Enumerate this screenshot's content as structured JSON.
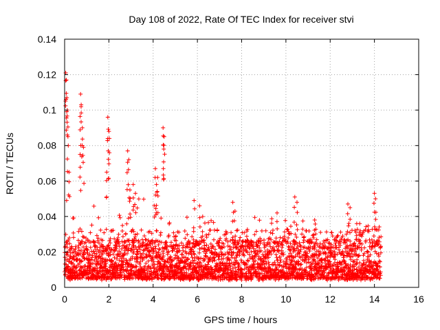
{
  "chart_data": {
    "type": "scatter",
    "title": "Day 108 of 2022, Rate Of TEC Index for receiver stvi",
    "xlabel": "GPS time / hours",
    "ylabel": "ROTI / TECUs",
    "xlim": [
      0,
      16
    ],
    "ylim": [
      0,
      0.14
    ],
    "xticks": [
      0,
      2,
      4,
      6,
      8,
      10,
      12,
      14,
      16
    ],
    "xtick_labels": [
      "0",
      "2",
      "4",
      "6",
      "8",
      "10",
      "12",
      "14",
      "16"
    ],
    "yticks": [
      0,
      0.02,
      0.04,
      0.06,
      0.08,
      0.1,
      0.12,
      0.14
    ],
    "ytick_labels": [
      "0",
      "0.02",
      "0.04",
      "0.06",
      "0.08",
      "0.1",
      "0.12",
      "0.14"
    ],
    "grid": true,
    "marker": "+",
    "color": "#ff0000",
    "data_x_range": [
      0,
      14.3
    ],
    "series": [
      {
        "name": "ROTI",
        "note": "dense cloud of points between ~0.005 and ~0.03 across 0-14.3 h, with scattered spikes listed below",
        "spikes_x": [
          0.05,
          0.08,
          0.1,
          0.12,
          0.15,
          0.2,
          0.72,
          0.75,
          0.8,
          0.85,
          0.7,
          1.95,
          2.0,
          1.97,
          1.9,
          2.85,
          2.9,
          2.95,
          3.1,
          3.2,
          4.1,
          4.2,
          4.15,
          4.45,
          4.5,
          4.48,
          5.85,
          6.1,
          7.6,
          7.7,
          9.6,
          10.4,
          10.5,
          11.3,
          12.8,
          12.9,
          13.2,
          14.0,
          14.05
        ],
        "spikes_y": [
          0.121,
          0.117,
          0.107,
          0.1,
          0.085,
          0.065,
          0.109,
          0.103,
          0.09,
          0.079,
          0.075,
          0.096,
          0.088,
          0.077,
          0.065,
          0.077,
          0.072,
          0.055,
          0.058,
          0.053,
          0.067,
          0.062,
          0.058,
          0.09,
          0.085,
          0.078,
          0.049,
          0.046,
          0.048,
          0.043,
          0.042,
          0.051,
          0.048,
          0.038,
          0.047,
          0.045,
          0.036,
          0.053,
          0.05
        ]
      }
    ]
  }
}
